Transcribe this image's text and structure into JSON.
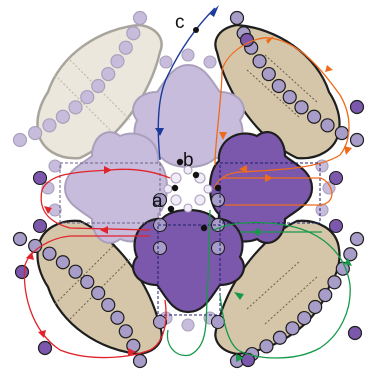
{
  "labels": {
    "a": "a",
    "b": "b",
    "c": "c"
  },
  "colors": {
    "light_beige": "#ebe7dc",
    "tan": "#d5c6a9",
    "light_purple": "#c8bcdc",
    "dark_purple": "#7b58ac",
    "path_blue": "#1c3a9a",
    "path_orange": "#ee6b1c",
    "path_red": "#e2232b",
    "path_green": "#17994a"
  }
}
